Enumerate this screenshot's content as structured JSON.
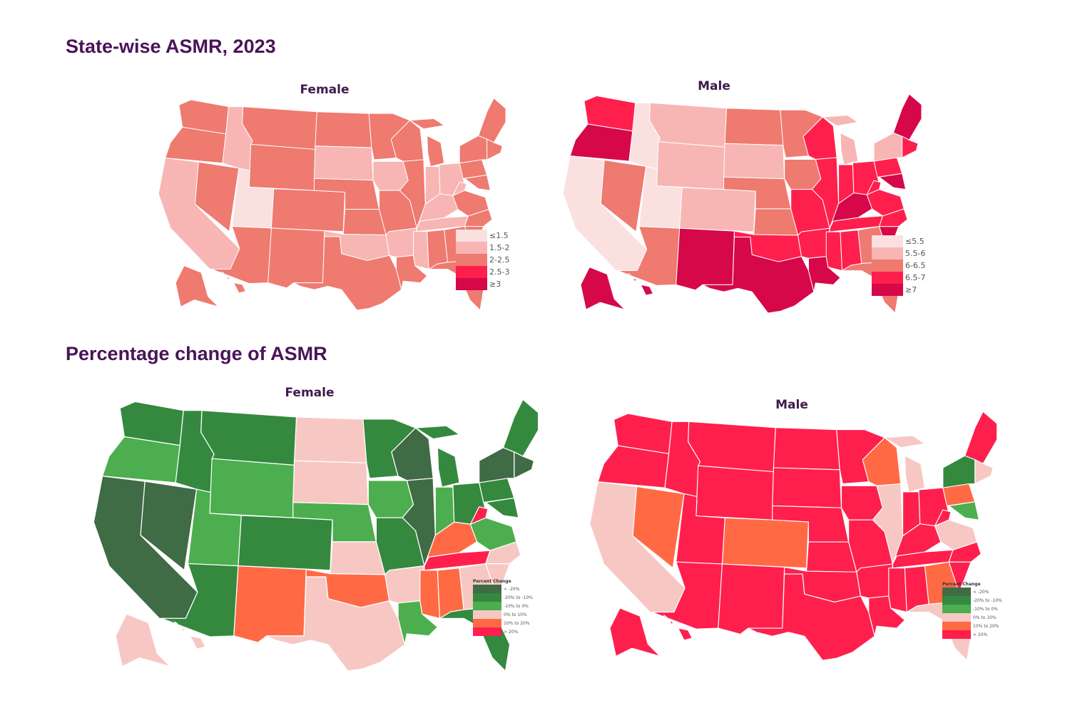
{
  "titles": {
    "top": "State-wise ASMR, 2023",
    "bottom": "Percentage change of ASMR"
  },
  "legend_rate_female": [
    {
      "label": "≤1.5",
      "color": "#fbe0e0"
    },
    {
      "label": "1.5-2",
      "color": "#f7b6b4"
    },
    {
      "label": "2-2.5",
      "color": "#ee7a70"
    },
    {
      "label": "2.5-3",
      "color": "#ff1f4d"
    },
    {
      "label": "≥3",
      "color": "#d6084a"
    }
  ],
  "legend_rate_male": [
    {
      "label": "≤5.5",
      "color": "#fbe0e0"
    },
    {
      "label": "5.5-6",
      "color": "#f7b6b4"
    },
    {
      "label": "6-6.5",
      "color": "#ee7a70"
    },
    {
      "label": "6.5-7",
      "color": "#ff1f4d"
    },
    {
      "label": "≥7",
      "color": "#d6084a"
    }
  ],
  "legend_change": {
    "heading": "Percent Change",
    "bins": [
      {
        "label": "< -20%",
        "color": "#3f6b45"
      },
      {
        "label": "-20% to -10%",
        "color": "#34893f"
      },
      {
        "label": "-10% to 0%",
        "color": "#4cae4f"
      },
      {
        "label": "0% to 10%",
        "color": "#f7c8c3"
      },
      {
        "label": "10% to 20%",
        "color": "#ff6a45"
      },
      {
        "label": "> 20%",
        "color": "#ff1f4d"
      }
    ]
  },
  "maps": [
    {
      "id": "rate-female",
      "title": "Female",
      "metric": "ASMR",
      "year": "2023",
      "legend": "legend_rate_female",
      "states": {
        "WA": "2-2.5",
        "OR": "2-2.5",
        "CA": "1.5-2",
        "NV": "2-2.5",
        "ID": "1.5-2",
        "MT": "2-2.5",
        "WY": "2-2.5",
        "UT": "≤1.5",
        "CO": "2-2.5",
        "AZ": "2-2.5",
        "NM": "2-2.5",
        "ND": "2-2.5",
        "SD": "1.5-2",
        "NE": "2-2.5",
        "KS": "2-2.5",
        "OK": "1.5-2",
        "TX": "2-2.5",
        "MN": "2-2.5",
        "IA": "1.5-2",
        "MO": "2-2.5",
        "AR": "1.5-2",
        "LA": "2-2.5",
        "WI": "2-2.5",
        "IL": "2-2.5",
        "MI": "2-2.5",
        "IN": "1.5-2",
        "OH": "1.5-2",
        "KY": "1.5-2",
        "TN": "1.5-2",
        "MS": "1.5-2",
        "AL": "2-2.5",
        "GA": "2-2.5",
        "FL": "2-2.5",
        "SC": "2-2.5",
        "NC": "2-2.5",
        "VA": "2-2.5",
        "WV": "1.5-2",
        "PA": "2-2.5",
        "NY": "2-2.5",
        "NE6": "2-2.5",
        "MA": "2-2.5",
        "MDDE": "2-2.5",
        "AK": "2-2.5",
        "HI": "2-2.5"
      }
    },
    {
      "id": "rate-male",
      "title": "Male",
      "metric": "ASMR",
      "year": "2023",
      "legend": "legend_rate_male",
      "states": {
        "WA": "6.5-7",
        "OR": "≥7",
        "CA": "≤5.5",
        "NV": "6-6.5",
        "ID": "≤5.5",
        "MT": "5.5-6",
        "WY": "5.5-6",
        "UT": "≤5.5",
        "CO": "5.5-6",
        "AZ": "6-6.5",
        "NM": "≥7",
        "ND": "6-6.5",
        "SD": "5.5-6",
        "NE": "6-6.5",
        "KS": "6-6.5",
        "OK": "6.5-7",
        "TX": "≥7",
        "MN": "6-6.5",
        "IA": "6-6.5",
        "MO": "6.5-7",
        "AR": "6.5-7",
        "LA": "≥7",
        "WI": "6.5-7",
        "IL": "6.5-7",
        "MI": "5.5-6",
        "IN": "6.5-7",
        "OH": "6.5-7",
        "KY": "≥7",
        "TN": "6.5-7",
        "MS": "6.5-7",
        "AL": "6.5-7",
        "GA": "6-6.5",
        "FL": "6-6.5",
        "SC": "≥7",
        "NC": "6.5-7",
        "VA": "6.5-7",
        "WV": "6.5-7",
        "PA": "6.5-7",
        "NY": "5.5-6",
        "NE6": "≥7",
        "MA": "6.5-7",
        "MDDE": "≥7",
        "AK": "≥7",
        "HI": "≥7"
      }
    },
    {
      "id": "change-female",
      "title": "Female",
      "metric": "Percent Change",
      "legend": "legend_change",
      "states": {
        "WA": "-20% to -10%",
        "OR": "-10% to 0%",
        "CA": "< -20%",
        "NV": "< -20%",
        "ID": "-20% to -10%",
        "MT": "-20% to -10%",
        "WY": "-10% to 0%",
        "UT": "-10% to 0%",
        "CO": "-20% to -10%",
        "AZ": "-20% to -10%",
        "NM": "10% to 20%",
        "ND": "0% to 10%",
        "SD": "0% to 10%",
        "NE": "-10% to 0%",
        "KS": "0% to 10%",
        "OK": "10% to 20%",
        "TX": "0% to 10%",
        "MN": "-20% to -10%",
        "IA": "-10% to 0%",
        "MO": "-20% to -10%",
        "AR": "0% to 10%",
        "LA": "-10% to 0%",
        "WI": "< -20%",
        "IL": "< -20%",
        "MI": "-20% to -10%",
        "IN": "-10% to 0%",
        "OH": "-20% to -10%",
        "KY": "10% to 20%",
        "TN": "> 20%",
        "MS": "10% to 20%",
        "AL": "10% to 20%",
        "GA": "0% to 10%",
        "FL": "-20% to -10%",
        "SC": "0% to 10%",
        "NC": "0% to 10%",
        "VA": "-10% to 0%",
        "WV": "> 20%",
        "PA": "-20% to -10%",
        "NY": "< -20%",
        "NE6": "-20% to -10%",
        "MA": "< -20%",
        "MDDE": "-20% to -10%",
        "AK": "0% to 10%",
        "HI": "0% to 10%"
      }
    },
    {
      "id": "change-male",
      "title": "Male",
      "metric": "Percent Change",
      "legend": "legend_change",
      "states": {
        "WA": "> 20%",
        "OR": "> 20%",
        "CA": "0% to 10%",
        "NV": "10% to 20%",
        "ID": "> 20%",
        "MT": "> 20%",
        "WY": "> 20%",
        "UT": "> 20%",
        "CO": "10% to 20%",
        "AZ": "> 20%",
        "NM": "> 20%",
        "ND": "> 20%",
        "SD": "> 20%",
        "NE": "> 20%",
        "KS": "> 20%",
        "OK": "> 20%",
        "TX": "> 20%",
        "MN": "> 20%",
        "IA": "> 20%",
        "MO": "> 20%",
        "AR": "> 20%",
        "LA": "> 20%",
        "WI": "10% to 20%",
        "IL": "0% to 10%",
        "MI": "0% to 10%",
        "IN": "> 20%",
        "OH": "> 20%",
        "KY": "> 20%",
        "TN": "> 20%",
        "MS": "> 20%",
        "AL": "> 20%",
        "GA": "10% to 20%",
        "FL": "0% to 10%",
        "SC": "> 20%",
        "NC": "> 20%",
        "VA": "0% to 10%",
        "WV": "> 20%",
        "PA": "10% to 20%",
        "NY": "-20% to -10%",
        "NE6": "> 20%",
        "MA": "0% to 10%",
        "MDDE": "-10% to 0%",
        "AK": "> 20%",
        "HI": "> 20%"
      }
    }
  ]
}
